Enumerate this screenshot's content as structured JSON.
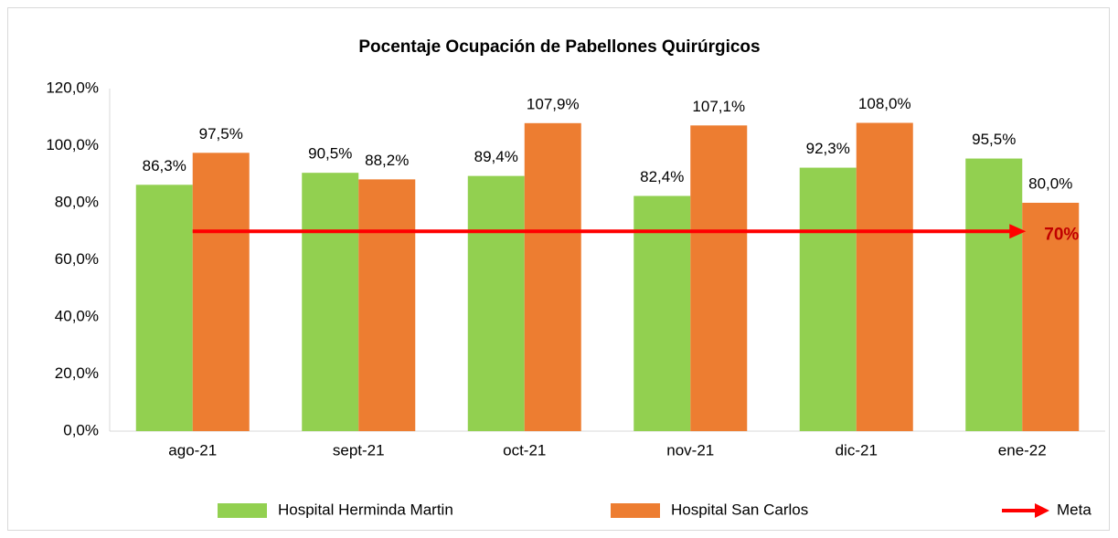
{
  "chart_data": {
    "type": "bar",
    "title": "Pocentaje Ocupación de Pabellones Quirúrgicos",
    "categories": [
      "ago-21",
      "sept-21",
      "oct-21",
      "nov-21",
      "dic-21",
      "ene-22"
    ],
    "series": [
      {
        "name": "Hospital Herminda Martin",
        "color": "#92d050",
        "values": [
          86.3,
          90.5,
          89.4,
          82.4,
          92.3,
          95.5
        ],
        "value_labels": [
          "86,3%",
          "90,5%",
          "89,4%",
          "82,4%",
          "92,3%",
          "95,5%"
        ]
      },
      {
        "name": "Hospital San Carlos",
        "color": "#ed7d31",
        "values": [
          97.5,
          88.2,
          107.9,
          107.1,
          108.0,
          80.0
        ],
        "value_labels": [
          "97,5%",
          "88,2%",
          "107,9%",
          "107,1%",
          "108,0%",
          "80,0%"
        ]
      }
    ],
    "target": {
      "name": "Meta",
      "value": 70,
      "value_label": "70%",
      "color": "#ff0000"
    },
    "ylim": [
      0,
      120
    ],
    "yticks": [
      {
        "value": 0,
        "label": "0,0%"
      },
      {
        "value": 20,
        "label": "20,0%"
      },
      {
        "value": 40,
        "label": "40,0%"
      },
      {
        "value": 60,
        "label": "60,0%"
      },
      {
        "value": 80,
        "label": "80,0%"
      },
      {
        "value": 100,
        "label": "100,0%"
      },
      {
        "value": 120,
        "label": "120,0%"
      }
    ],
    "grid": false,
    "legend": "bottom"
  }
}
